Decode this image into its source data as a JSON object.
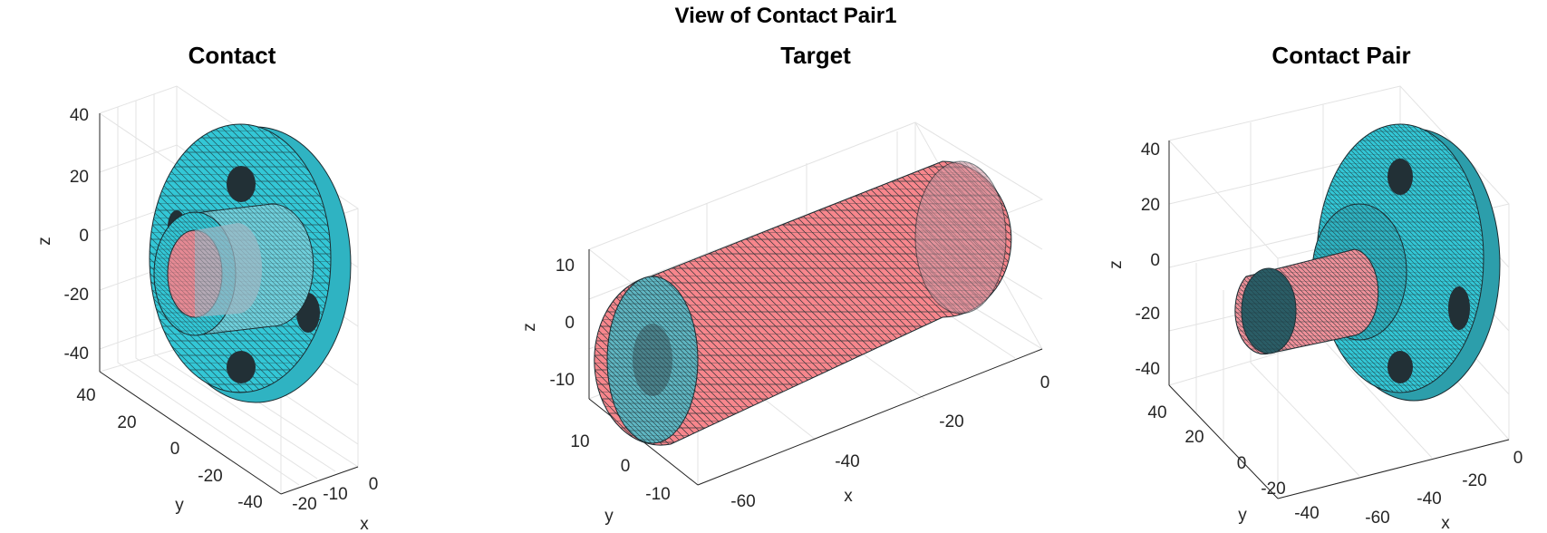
{
  "figure": {
    "title": "View of Contact Pair1"
  },
  "colors": {
    "contact_face": "#33c7d6",
    "target_face": "#f7868c",
    "target_end": "#5fb6c2",
    "mesh_edge": "#1b2b30"
  },
  "panels": [
    {
      "title": "Contact",
      "zlabel": "z",
      "ylabel": "y",
      "xlabel": "x",
      "z_ticks": [
        "40",
        "20",
        "0",
        "-20",
        "-40"
      ],
      "y_ticks": [
        "40",
        "20",
        "0",
        "-20",
        "-40"
      ],
      "x_ticks": [
        "-20",
        "-10",
        "0"
      ]
    },
    {
      "title": "Target",
      "zlabel": "z",
      "ylabel": "y",
      "xlabel": "x",
      "z_ticks": [
        "10",
        "0",
        "-10"
      ],
      "y_ticks": [
        "10",
        "0",
        "-10"
      ],
      "x_ticks": [
        "-60",
        "-40",
        "-20",
        "0"
      ]
    },
    {
      "title": "Contact Pair",
      "zlabel": "z",
      "ylabel": "y",
      "xlabel": "x",
      "z_ticks": [
        "40",
        "20",
        "0",
        "-20",
        "-40"
      ],
      "y_ticks": [
        "40",
        "20",
        "0",
        "-20",
        "-40"
      ],
      "x_ticks": [
        "-60",
        "-40",
        "-20",
        "0"
      ]
    }
  ]
}
